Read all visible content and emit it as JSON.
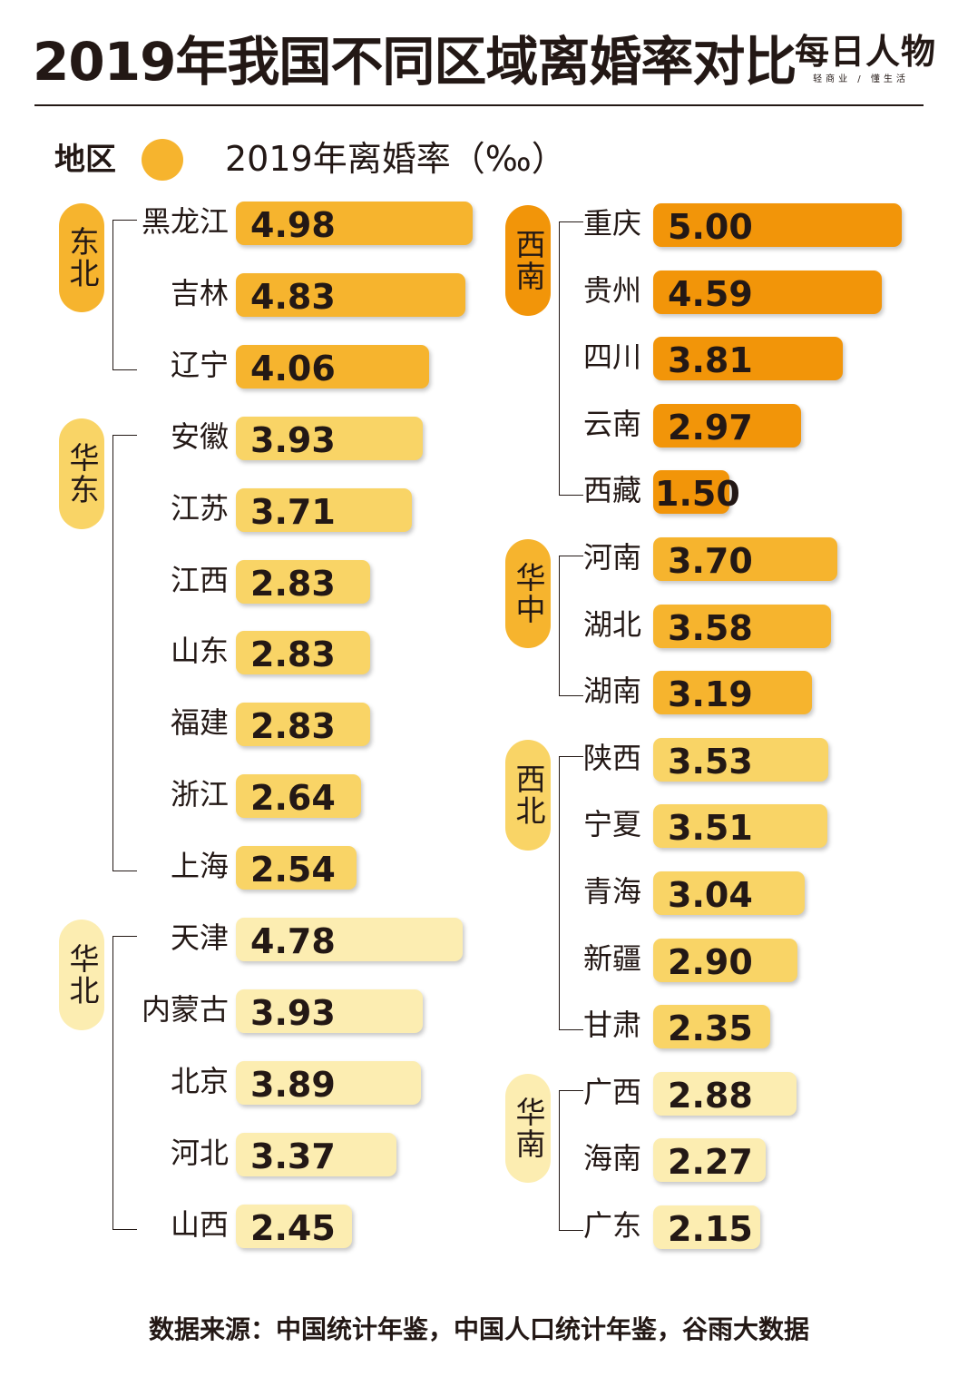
{
  "title": "2019年我国不同区域离婚率对比",
  "brand": {
    "name": "每日人物",
    "slogan": "轻商业 / 懂生活"
  },
  "legend": {
    "region_label": "地区",
    "rate_label": "2019年离婚率（‰）"
  },
  "source": "数据来源：中国统计年鉴，中国人口统计年鉴，谷雨大数据",
  "colors": {
    "dark": "#f29509",
    "mid": "#f6b42e",
    "light": "#f9d466",
    "pale": "#fcedb1",
    "text": "#231815"
  },
  "chart_data": {
    "type": "bar",
    "unit": "‰",
    "max_value": 5.0,
    "groups": [
      {
        "region": "东北",
        "column": "left",
        "color": "mid",
        "items": [
          {
            "name": "黑龙江",
            "value": 4.98
          },
          {
            "name": "吉林",
            "value": 4.83
          },
          {
            "name": "辽宁",
            "value": 4.06
          }
        ]
      },
      {
        "region": "华东",
        "column": "left",
        "color": "light",
        "items": [
          {
            "name": "安徽",
            "value": 3.93
          },
          {
            "name": "江苏",
            "value": 3.71
          },
          {
            "name": "江西",
            "value": 2.83
          },
          {
            "name": "山东",
            "value": 2.83
          },
          {
            "name": "福建",
            "value": 2.83
          },
          {
            "name": "浙江",
            "value": 2.64
          },
          {
            "name": "上海",
            "value": 2.54
          }
        ]
      },
      {
        "region": "华北",
        "column": "left",
        "color": "pale",
        "items": [
          {
            "name": "天津",
            "value": 4.78
          },
          {
            "name": "内蒙古",
            "value": 3.93
          },
          {
            "name": "北京",
            "value": 3.89
          },
          {
            "name": "河北",
            "value": 3.37
          },
          {
            "name": "山西",
            "value": 2.45
          }
        ]
      },
      {
        "region": "西南",
        "column": "right",
        "color": "dark",
        "items": [
          {
            "name": "重庆",
            "value": 5.0
          },
          {
            "name": "贵州",
            "value": 4.59
          },
          {
            "name": "四川",
            "value": 3.81
          },
          {
            "name": "云南",
            "value": 2.97
          },
          {
            "name": "西藏",
            "value": 1.5
          }
        ]
      },
      {
        "region": "华中",
        "column": "right",
        "color": "mid",
        "items": [
          {
            "name": "河南",
            "value": 3.7
          },
          {
            "name": "湖北",
            "value": 3.58
          },
          {
            "name": "湖南",
            "value": 3.19
          }
        ]
      },
      {
        "region": "西北",
        "column": "right",
        "color": "light",
        "items": [
          {
            "name": "陕西",
            "value": 3.53
          },
          {
            "name": "宁夏",
            "value": 3.51
          },
          {
            "name": "青海",
            "value": 3.04
          },
          {
            "name": "新疆",
            "value": 2.9
          },
          {
            "name": "甘肃",
            "value": 2.35
          }
        ]
      },
      {
        "region": "华南",
        "column": "right",
        "color": "pale",
        "items": [
          {
            "name": "广西",
            "value": 2.88
          },
          {
            "name": "海南",
            "value": 2.27
          },
          {
            "name": "广东",
            "value": 2.15
          }
        ]
      }
    ]
  }
}
